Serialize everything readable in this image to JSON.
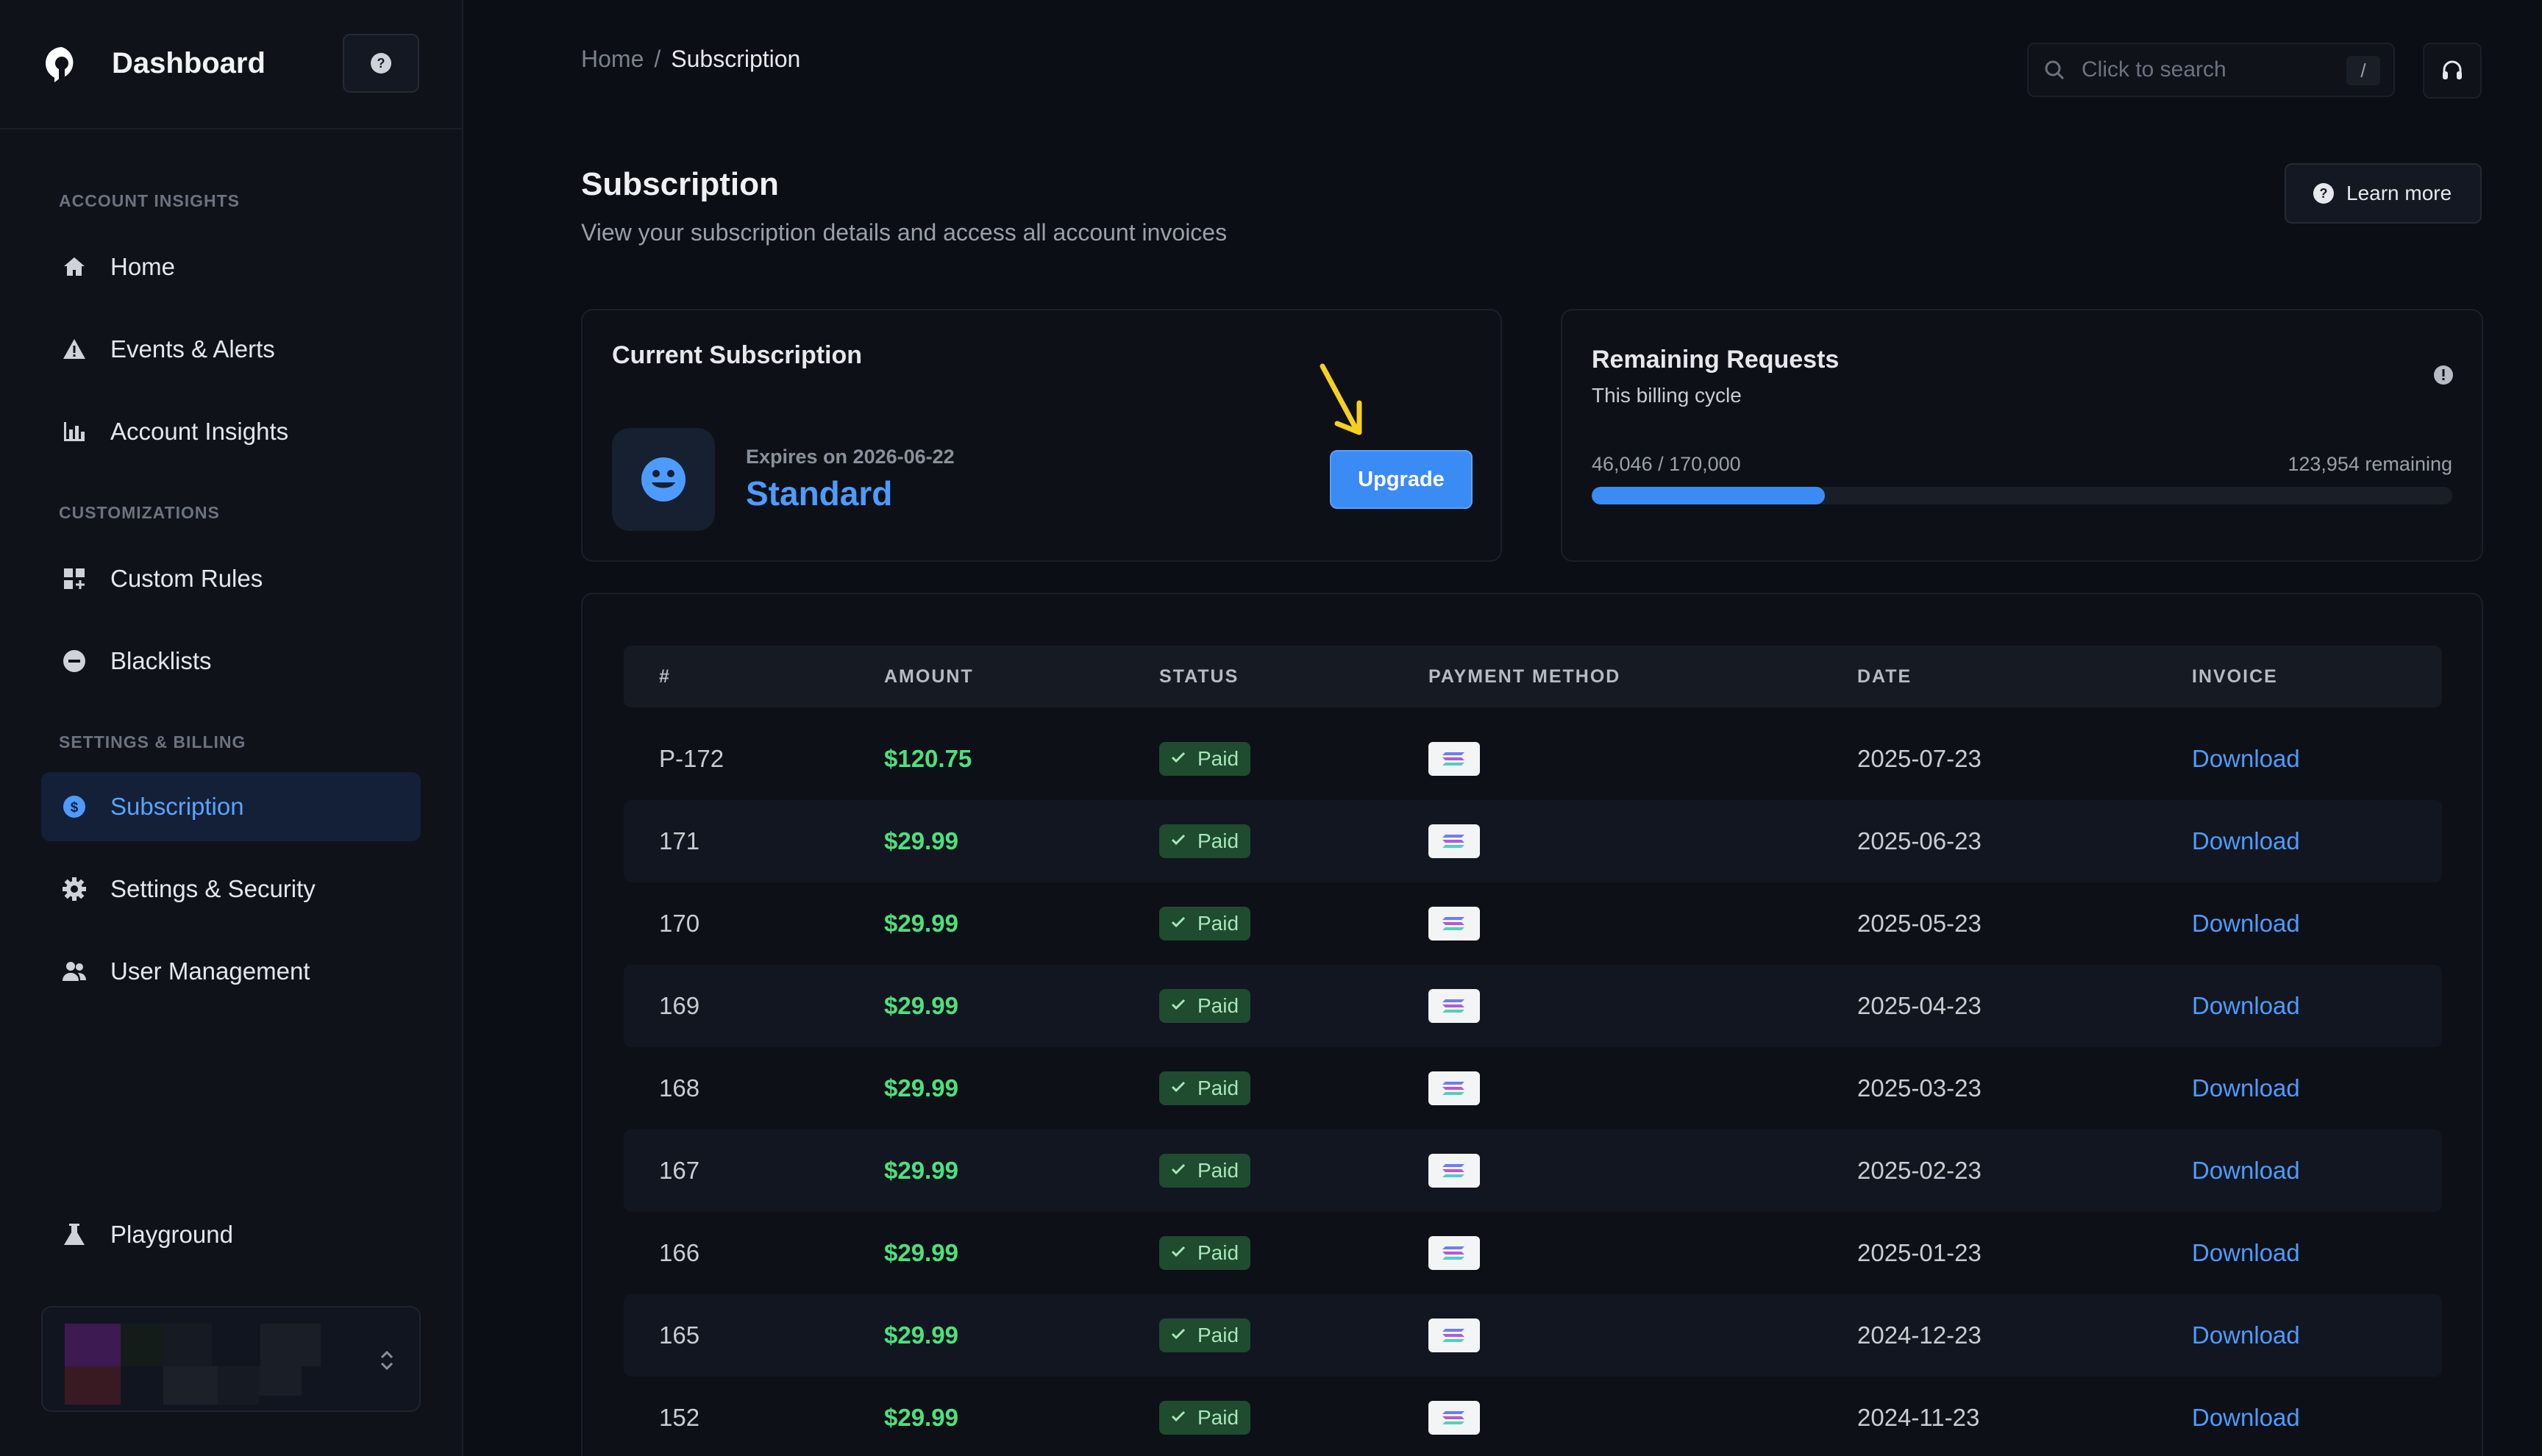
{
  "brand": {
    "title": "Dashboard"
  },
  "sidebar": {
    "sections": [
      {
        "label": "ACCOUNT INSIGHTS"
      },
      {
        "label": "CUSTOMIZATIONS"
      },
      {
        "label": "SETTINGS & BILLING"
      }
    ],
    "items": [
      {
        "label": "Home",
        "icon": "home-icon"
      },
      {
        "label": "Events & Alerts",
        "icon": "warning-icon"
      },
      {
        "label": "Account Insights",
        "icon": "bar-chart-icon"
      },
      {
        "label": "Custom Rules",
        "icon": "grid-plus-icon"
      },
      {
        "label": "Blacklists",
        "icon": "minus-circle-icon"
      },
      {
        "label": "Subscription",
        "icon": "dollar-circle-icon",
        "active": true
      },
      {
        "label": "Settings & Security",
        "icon": "gear-icon"
      },
      {
        "label": "User Management",
        "icon": "users-icon"
      },
      {
        "label": "Playground",
        "icon": "flask-icon"
      }
    ]
  },
  "breadcrumb": {
    "home": "Home",
    "separator": "/",
    "current": "Subscription"
  },
  "search": {
    "placeholder": "Click to search",
    "shortcut": "/"
  },
  "header": {
    "title": "Subscription",
    "subtitle": "View your subscription details and access all account invoices",
    "learn_more": "Learn more"
  },
  "current_subscription": {
    "title": "Current Subscription",
    "expires": "Expires on 2026-06-22",
    "plan": "Standard",
    "upgrade_label": "Upgrade"
  },
  "remaining_requests": {
    "title": "Remaining Requests",
    "subtitle": "This billing cycle",
    "used_text": "46,046 / 170,000",
    "remaining_text": "123,954 remaining",
    "used": 46046,
    "total": 170000
  },
  "invoices": {
    "columns": [
      "#",
      "AMOUNT",
      "STATUS",
      "PAYMENT METHOD",
      "DATE",
      "INVOICE"
    ],
    "rows": [
      {
        "id": "P-172",
        "amount": "$120.75",
        "status": "Paid",
        "date": "2025-07-23",
        "invoice": "Download"
      },
      {
        "id": "171",
        "amount": "$29.99",
        "status": "Paid",
        "date": "2025-06-23",
        "invoice": "Download"
      },
      {
        "id": "170",
        "amount": "$29.99",
        "status": "Paid",
        "date": "2025-05-23",
        "invoice": "Download"
      },
      {
        "id": "169",
        "amount": "$29.99",
        "status": "Paid",
        "date": "2025-04-23",
        "invoice": "Download"
      },
      {
        "id": "168",
        "amount": "$29.99",
        "status": "Paid",
        "date": "2025-03-23",
        "invoice": "Download"
      },
      {
        "id": "167",
        "amount": "$29.99",
        "status": "Paid",
        "date": "2025-02-23",
        "invoice": "Download"
      },
      {
        "id": "166",
        "amount": "$29.99",
        "status": "Paid",
        "date": "2025-01-23",
        "invoice": "Download"
      },
      {
        "id": "165",
        "amount": "$29.99",
        "status": "Paid",
        "date": "2024-12-23",
        "invoice": "Download"
      },
      {
        "id": "152",
        "amount": "$29.99",
        "status": "Paid",
        "date": "2024-11-23",
        "invoice": "Download"
      }
    ]
  },
  "colors": {
    "accent": "#3b8bf5",
    "link": "#4e9bff",
    "paid": "#4ee07d",
    "background": "#0b0e14"
  }
}
